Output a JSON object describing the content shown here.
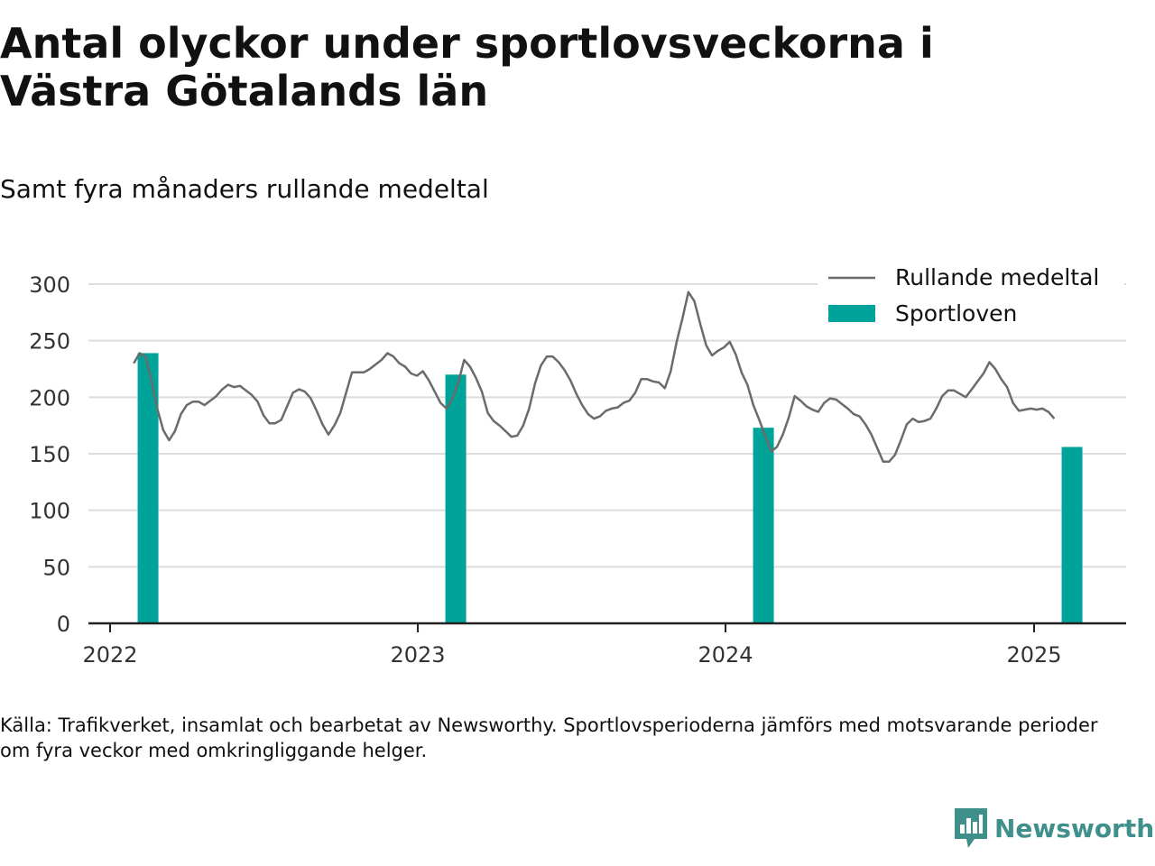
{
  "header": {
    "title": "Antal olyckor under sportlovsveckorna i Västra Götalands län",
    "subtitle": "Samt fyra månaders rullande medeltal"
  },
  "footer": {
    "source": "Källa: Trafikverket, insamlat och bearbetat av Newsworthy. Sportlovsperioderna jämförs med motsvarande perioder om fyra veckor med omkringliggande helger.",
    "brand": "Newsworthy"
  },
  "colors": {
    "line": "#6b6b6b",
    "bar": "#00a39a",
    "grid": "#dddddd",
    "axis": "#222222",
    "brand": "#3f8f8b"
  },
  "chart_data": {
    "type": "bar",
    "title": "Antal olyckor under sportlovsveckorna i Västra Götalands län",
    "subtitle": "Samt fyra månaders rullande medeltal",
    "xlabel": "",
    "ylabel": "",
    "ylim": [
      0,
      300
    ],
    "yticks": [
      0,
      50,
      100,
      150,
      200,
      250,
      300
    ],
    "xticks": [
      "2022",
      "2023",
      "2024",
      "2025"
    ],
    "grid": true,
    "legend_position": "top-right",
    "series": [
      {
        "name": "Sportloven",
        "type": "bar",
        "color": "#00a39a",
        "points": [
          {
            "x": "2022-02",
            "y": 239
          },
          {
            "x": "2023-02",
            "y": 220
          },
          {
            "x": "2024-02",
            "y": 173
          },
          {
            "x": "2025-02",
            "y": 156
          }
        ]
      },
      {
        "name": "Rullande medeltal",
        "type": "line",
        "color": "#6b6b6b",
        "points": [
          {
            "x": "2022-01-29",
            "y": 230
          },
          {
            "x": "2022-02-05",
            "y": 239
          },
          {
            "x": "2022-02-12",
            "y": 236
          },
          {
            "x": "2022-02-19",
            "y": 215
          },
          {
            "x": "2022-02-26",
            "y": 190
          },
          {
            "x": "2022-03-05",
            "y": 171
          },
          {
            "x": "2022-03-12",
            "y": 162
          },
          {
            "x": "2022-03-19",
            "y": 170
          },
          {
            "x": "2022-03-26",
            "y": 185
          },
          {
            "x": "2022-04-02",
            "y": 193
          },
          {
            "x": "2022-04-09",
            "y": 196
          },
          {
            "x": "2022-04-16",
            "y": 196
          },
          {
            "x": "2022-04-23",
            "y": 193
          },
          {
            "x": "2022-04-30",
            "y": 197
          },
          {
            "x": "2022-05-07",
            "y": 201
          },
          {
            "x": "2022-05-14",
            "y": 207
          },
          {
            "x": "2022-05-21",
            "y": 211
          },
          {
            "x": "2022-05-28",
            "y": 209
          },
          {
            "x": "2022-06-04",
            "y": 210
          },
          {
            "x": "2022-06-11",
            "y": 206
          },
          {
            "x": "2022-06-18",
            "y": 202
          },
          {
            "x": "2022-06-25",
            "y": 196
          },
          {
            "x": "2022-07-02",
            "y": 184
          },
          {
            "x": "2022-07-09",
            "y": 177
          },
          {
            "x": "2022-07-16",
            "y": 177
          },
          {
            "x": "2022-07-23",
            "y": 180
          },
          {
            "x": "2022-07-30",
            "y": 192
          },
          {
            "x": "2022-08-06",
            "y": 204
          },
          {
            "x": "2022-08-13",
            "y": 207
          },
          {
            "x": "2022-08-20",
            "y": 205
          },
          {
            "x": "2022-08-27",
            "y": 199
          },
          {
            "x": "2022-09-03",
            "y": 188
          },
          {
            "x": "2022-09-10",
            "y": 176
          },
          {
            "x": "2022-09-17",
            "y": 167
          },
          {
            "x": "2022-09-24",
            "y": 175
          },
          {
            "x": "2022-10-01",
            "y": 186
          },
          {
            "x": "2022-10-08",
            "y": 204
          },
          {
            "x": "2022-10-15",
            "y": 222
          },
          {
            "x": "2022-10-22",
            "y": 222
          },
          {
            "x": "2022-10-29",
            "y": 222
          },
          {
            "x": "2022-11-05",
            "y": 225
          },
          {
            "x": "2022-11-12",
            "y": 229
          },
          {
            "x": "2022-11-19",
            "y": 233
          },
          {
            "x": "2022-11-26",
            "y": 239
          },
          {
            "x": "2022-12-03",
            "y": 236
          },
          {
            "x": "2022-12-10",
            "y": 230
          },
          {
            "x": "2022-12-17",
            "y": 227
          },
          {
            "x": "2022-12-24",
            "y": 221
          },
          {
            "x": "2022-12-31",
            "y": 219
          },
          {
            "x": "2023-01-07",
            "y": 223
          },
          {
            "x": "2023-01-14",
            "y": 215
          },
          {
            "x": "2023-01-21",
            "y": 205
          },
          {
            "x": "2023-01-28",
            "y": 195
          },
          {
            "x": "2023-02-04",
            "y": 190
          },
          {
            "x": "2023-02-11",
            "y": 199
          },
          {
            "x": "2023-02-18",
            "y": 213
          },
          {
            "x": "2023-02-25",
            "y": 233
          },
          {
            "x": "2023-03-04",
            "y": 227
          },
          {
            "x": "2023-03-11",
            "y": 217
          },
          {
            "x": "2023-03-18",
            "y": 205
          },
          {
            "x": "2023-03-25",
            "y": 186
          },
          {
            "x": "2023-04-01",
            "y": 179
          },
          {
            "x": "2023-04-08",
            "y": 175
          },
          {
            "x": "2023-04-15",
            "y": 170
          },
          {
            "x": "2023-04-22",
            "y": 165
          },
          {
            "x": "2023-04-29",
            "y": 166
          },
          {
            "x": "2023-05-06",
            "y": 175
          },
          {
            "x": "2023-05-13",
            "y": 190
          },
          {
            "x": "2023-05-20",
            "y": 212
          },
          {
            "x": "2023-05-27",
            "y": 228
          },
          {
            "x": "2023-06-03",
            "y": 236
          },
          {
            "x": "2023-06-10",
            "y": 236
          },
          {
            "x": "2023-06-17",
            "y": 231
          },
          {
            "x": "2023-06-24",
            "y": 224
          },
          {
            "x": "2023-07-01",
            "y": 215
          },
          {
            "x": "2023-07-08",
            "y": 203
          },
          {
            "x": "2023-07-15",
            "y": 193
          },
          {
            "x": "2023-07-22",
            "y": 185
          },
          {
            "x": "2023-07-29",
            "y": 181
          },
          {
            "x": "2023-08-05",
            "y": 183
          },
          {
            "x": "2023-08-12",
            "y": 188
          },
          {
            "x": "2023-08-19",
            "y": 190
          },
          {
            "x": "2023-08-26",
            "y": 191
          },
          {
            "x": "2023-09-02",
            "y": 195
          },
          {
            "x": "2023-09-09",
            "y": 197
          },
          {
            "x": "2023-09-16",
            "y": 204
          },
          {
            "x": "2023-09-23",
            "y": 216
          },
          {
            "x": "2023-09-30",
            "y": 216
          },
          {
            "x": "2023-10-07",
            "y": 214
          },
          {
            "x": "2023-10-14",
            "y": 213
          },
          {
            "x": "2023-10-21",
            "y": 208
          },
          {
            "x": "2023-10-28",
            "y": 223
          },
          {
            "x": "2023-11-04",
            "y": 249
          },
          {
            "x": "2023-11-11",
            "y": 270
          },
          {
            "x": "2023-11-18",
            "y": 293
          },
          {
            "x": "2023-11-25",
            "y": 285
          },
          {
            "x": "2023-12-02",
            "y": 265
          },
          {
            "x": "2023-12-09",
            "y": 246
          },
          {
            "x": "2023-12-16",
            "y": 237
          },
          {
            "x": "2023-12-23",
            "y": 241
          },
          {
            "x": "2023-12-30",
            "y": 244
          },
          {
            "x": "2024-01-06",
            "y": 249
          },
          {
            "x": "2024-01-13",
            "y": 238
          },
          {
            "x": "2024-01-20",
            "y": 222
          },
          {
            "x": "2024-01-27",
            "y": 211
          },
          {
            "x": "2024-02-03",
            "y": 193
          },
          {
            "x": "2024-02-10",
            "y": 180
          },
          {
            "x": "2024-02-17",
            "y": 166
          },
          {
            "x": "2024-02-24",
            "y": 152
          },
          {
            "x": "2024-03-02",
            "y": 156
          },
          {
            "x": "2024-03-09",
            "y": 167
          },
          {
            "x": "2024-03-16",
            "y": 182
          },
          {
            "x": "2024-03-23",
            "y": 201
          },
          {
            "x": "2024-03-30",
            "y": 197
          },
          {
            "x": "2024-04-06",
            "y": 192
          },
          {
            "x": "2024-04-13",
            "y": 189
          },
          {
            "x": "2024-04-20",
            "y": 187
          },
          {
            "x": "2024-04-27",
            "y": 195
          },
          {
            "x": "2024-05-04",
            "y": 199
          },
          {
            "x": "2024-05-11",
            "y": 198
          },
          {
            "x": "2024-05-18",
            "y": 194
          },
          {
            "x": "2024-05-25",
            "y": 190
          },
          {
            "x": "2024-06-01",
            "y": 185
          },
          {
            "x": "2024-06-08",
            "y": 183
          },
          {
            "x": "2024-06-15",
            "y": 176
          },
          {
            "x": "2024-06-22",
            "y": 167
          },
          {
            "x": "2024-06-29",
            "y": 155
          },
          {
            "x": "2024-07-06",
            "y": 143
          },
          {
            "x": "2024-07-13",
            "y": 143
          },
          {
            "x": "2024-07-20",
            "y": 149
          },
          {
            "x": "2024-07-27",
            "y": 162
          },
          {
            "x": "2024-08-03",
            "y": 176
          },
          {
            "x": "2024-08-10",
            "y": 181
          },
          {
            "x": "2024-08-17",
            "y": 178
          },
          {
            "x": "2024-08-24",
            "y": 179
          },
          {
            "x": "2024-08-31",
            "y": 181
          },
          {
            "x": "2024-09-07",
            "y": 190
          },
          {
            "x": "2024-09-14",
            "y": 201
          },
          {
            "x": "2024-09-21",
            "y": 206
          },
          {
            "x": "2024-09-28",
            "y": 206
          },
          {
            "x": "2024-10-05",
            "y": 203
          },
          {
            "x": "2024-10-12",
            "y": 200
          },
          {
            "x": "2024-10-19",
            "y": 207
          },
          {
            "x": "2024-10-26",
            "y": 214
          },
          {
            "x": "2024-11-02",
            "y": 221
          },
          {
            "x": "2024-11-09",
            "y": 231
          },
          {
            "x": "2024-11-16",
            "y": 225
          },
          {
            "x": "2024-11-23",
            "y": 216
          },
          {
            "x": "2024-11-30",
            "y": 209
          },
          {
            "x": "2024-12-07",
            "y": 195
          },
          {
            "x": "2024-12-14",
            "y": 188
          },
          {
            "x": "2024-12-21",
            "y": 189
          },
          {
            "x": "2024-12-28",
            "y": 190
          },
          {
            "x": "2025-01-04",
            "y": 189
          },
          {
            "x": "2025-01-11",
            "y": 190
          },
          {
            "x": "2025-01-18",
            "y": 187
          },
          {
            "x": "2025-01-25",
            "y": 181
          }
        ]
      }
    ]
  }
}
